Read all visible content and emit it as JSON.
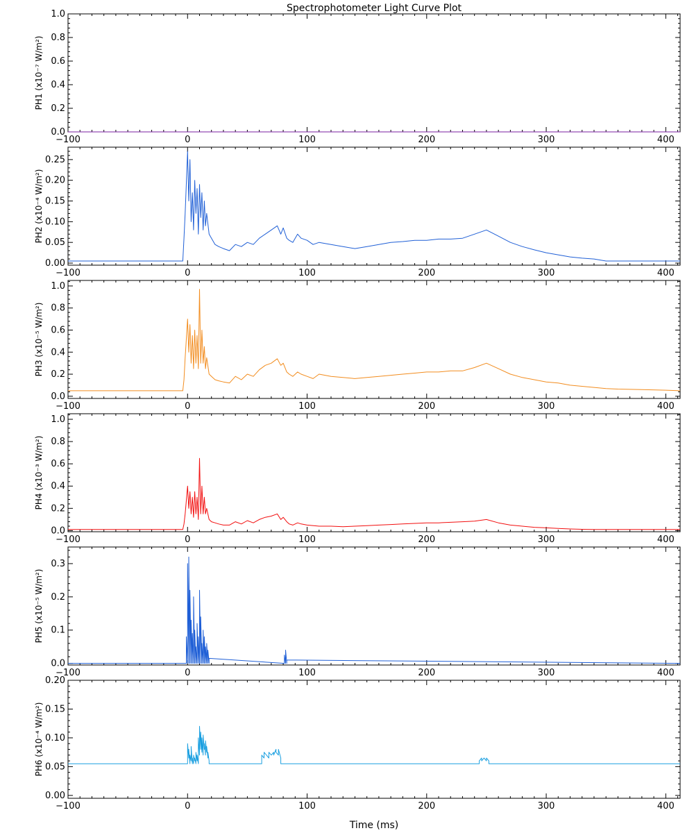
{
  "chart_data": {
    "type": "line",
    "title": "Spectrophotometer Light Curve Plot",
    "xlabel": "Time (ms)",
    "xlim": [
      -100,
      412
    ],
    "xticks": [
      -100,
      0,
      100,
      200,
      300,
      400
    ],
    "xtick_labels": [
      "−100",
      "0",
      "100",
      "200",
      "300",
      "400"
    ],
    "panels": [
      {
        "name": "PH1",
        "unit": "(x10⁻⁷ W/m²)",
        "color": "#7a1fa2",
        "ylim": [
          0,
          1.0
        ],
        "yticks": [
          0.0,
          0.2,
          0.4,
          0.6,
          0.8,
          1.0
        ],
        "ytick_labels": [
          "0.0",
          "0.2",
          "0.4",
          "0.6",
          "0.8",
          "1.0"
        ],
        "x": [
          -100,
          412
        ],
        "y": [
          0,
          0
        ]
      },
      {
        "name": "PH2",
        "unit": "(x10⁻⁴ W/m²)",
        "color": "#1f5fd6",
        "ylim": [
          -0.005,
          0.28
        ],
        "yticks": [
          0.0,
          0.05,
          0.1,
          0.15,
          0.2,
          0.25
        ],
        "ytick_labels": [
          "0.00",
          "0.05",
          "0.10",
          "0.15",
          "0.20",
          "0.25"
        ],
        "x": [
          -100,
          -4,
          -3,
          -2,
          0,
          1,
          2,
          3,
          4,
          5,
          6,
          7,
          8,
          9,
          10,
          11,
          12,
          13,
          14,
          15,
          16,
          18,
          20,
          23,
          26,
          30,
          35,
          40,
          45,
          50,
          55,
          60,
          65,
          70,
          75,
          78,
          80,
          83,
          85,
          88,
          92,
          95,
          100,
          105,
          110,
          120,
          130,
          140,
          150,
          160,
          170,
          180,
          190,
          200,
          210,
          220,
          230,
          240,
          250,
          260,
          270,
          280,
          290,
          300,
          310,
          320,
          330,
          340,
          350,
          412
        ],
        "y": [
          0.005,
          0.005,
          0.06,
          0.12,
          0.27,
          0.15,
          0.25,
          0.1,
          0.17,
          0.08,
          0.2,
          0.12,
          0.18,
          0.07,
          0.19,
          0.11,
          0.17,
          0.08,
          0.15,
          0.09,
          0.12,
          0.07,
          0.06,
          0.045,
          0.04,
          0.035,
          0.03,
          0.045,
          0.04,
          0.05,
          0.045,
          0.06,
          0.07,
          0.08,
          0.09,
          0.07,
          0.085,
          0.06,
          0.055,
          0.05,
          0.07,
          0.06,
          0.055,
          0.045,
          0.05,
          0.045,
          0.04,
          0.035,
          0.04,
          0.045,
          0.05,
          0.052,
          0.055,
          0.055,
          0.058,
          0.058,
          0.06,
          0.07,
          0.08,
          0.065,
          0.05,
          0.04,
          0.032,
          0.025,
          0.02,
          0.015,
          0.012,
          0.01,
          0.005,
          0.005
        ]
      },
      {
        "name": "PH3",
        "unit": "(x10⁻⁵ W/m²)",
        "color": "#f28c1e",
        "ylim": [
          -0.02,
          1.05
        ],
        "yticks": [
          0.0,
          0.2,
          0.4,
          0.6,
          0.8,
          1.0
        ],
        "ytick_labels": [
          "0.0",
          "0.2",
          "0.4",
          "0.6",
          "0.8",
          "1.0"
        ],
        "x": [
          -100,
          -4,
          -3,
          -2,
          0,
          1,
          2,
          3,
          4,
          5,
          6,
          7,
          8,
          9,
          10,
          11,
          12,
          13,
          14,
          15,
          16,
          18,
          20,
          23,
          26,
          30,
          35,
          40,
          45,
          50,
          55,
          60,
          65,
          70,
          75,
          78,
          80,
          83,
          85,
          88,
          92,
          95,
          100,
          105,
          110,
          120,
          130,
          140,
          150,
          160,
          170,
          180,
          190,
          200,
          210,
          220,
          230,
          240,
          250,
          260,
          270,
          280,
          290,
          300,
          310,
          320,
          330,
          340,
          350,
          360,
          380,
          400,
          412
        ],
        "y": [
          0.05,
          0.05,
          0.15,
          0.35,
          0.7,
          0.4,
          0.65,
          0.3,
          0.55,
          0.25,
          0.6,
          0.3,
          0.55,
          0.25,
          0.97,
          0.3,
          0.6,
          0.3,
          0.45,
          0.25,
          0.35,
          0.2,
          0.18,
          0.15,
          0.14,
          0.13,
          0.12,
          0.18,
          0.15,
          0.2,
          0.18,
          0.24,
          0.28,
          0.3,
          0.34,
          0.28,
          0.3,
          0.22,
          0.2,
          0.18,
          0.22,
          0.2,
          0.18,
          0.16,
          0.2,
          0.18,
          0.17,
          0.16,
          0.17,
          0.18,
          0.19,
          0.2,
          0.21,
          0.22,
          0.22,
          0.23,
          0.23,
          0.26,
          0.3,
          0.25,
          0.2,
          0.17,
          0.15,
          0.13,
          0.12,
          0.1,
          0.09,
          0.08,
          0.07,
          0.065,
          0.06,
          0.055,
          0.05
        ]
      },
      {
        "name": "PH4",
        "unit": "(x10⁻³ W/m²)",
        "color": "#f20d0d",
        "ylim": [
          -0.01,
          1.05
        ],
        "yticks": [
          0.0,
          0.2,
          0.4,
          0.6,
          0.8,
          1.0
        ],
        "ytick_labels": [
          "0.0",
          "0.2",
          "0.4",
          "0.6",
          "0.8",
          "1.0"
        ],
        "x": [
          -100,
          -4,
          -3,
          -2,
          0,
          1,
          2,
          3,
          4,
          5,
          6,
          7,
          8,
          9,
          10,
          11,
          12,
          13,
          14,
          15,
          16,
          18,
          20,
          23,
          26,
          30,
          35,
          40,
          45,
          50,
          55,
          60,
          65,
          70,
          75,
          78,
          80,
          83,
          85,
          88,
          92,
          95,
          100,
          110,
          120,
          130,
          140,
          150,
          160,
          170,
          180,
          190,
          200,
          210,
          220,
          230,
          240,
          250,
          260,
          270,
          280,
          290,
          300,
          310,
          320,
          330,
          340,
          350,
          412
        ],
        "y": [
          0.01,
          0.01,
          0.06,
          0.15,
          0.4,
          0.2,
          0.35,
          0.15,
          0.3,
          0.12,
          0.35,
          0.15,
          0.3,
          0.1,
          0.65,
          0.15,
          0.4,
          0.15,
          0.3,
          0.15,
          0.2,
          0.1,
          0.08,
          0.07,
          0.06,
          0.05,
          0.05,
          0.08,
          0.06,
          0.09,
          0.07,
          0.1,
          0.12,
          0.13,
          0.15,
          0.1,
          0.12,
          0.08,
          0.06,
          0.05,
          0.07,
          0.06,
          0.05,
          0.04,
          0.04,
          0.035,
          0.04,
          0.045,
          0.05,
          0.055,
          0.06,
          0.065,
          0.07,
          0.07,
          0.075,
          0.08,
          0.085,
          0.1,
          0.07,
          0.05,
          0.04,
          0.03,
          0.025,
          0.02,
          0.015,
          0.012,
          0.01,
          0.01,
          0.01
        ]
      },
      {
        "name": "PH5",
        "unit": "(x10⁻⁵ W/m²)",
        "color": "#1f5fd6",
        "ylim": [
          -0.005,
          0.35
        ],
        "yticks": [
          0.0,
          0.1,
          0.2,
          0.3
        ],
        "ytick_labels": [
          "0.0",
          "0.1",
          "0.2",
          "0.3"
        ],
        "x": [
          -100,
          -1,
          -1,
          0,
          0,
          1,
          1,
          2,
          2,
          3,
          3,
          4,
          4,
          5,
          5,
          6,
          6,
          7,
          7,
          8,
          8,
          9,
          9,
          10,
          10,
          11,
          11,
          12,
          12,
          13,
          13,
          14,
          14,
          15,
          15,
          16,
          16,
          17,
          17,
          18,
          18,
          81,
          81,
          82,
          82,
          83,
          83,
          412
        ],
        "y": [
          0,
          0,
          0.08,
          0,
          0.3,
          0,
          0.32,
          0,
          0.22,
          0,
          0.13,
          0,
          0.09,
          0,
          0.2,
          0,
          0.1,
          0,
          0.05,
          0,
          0.12,
          0,
          0.08,
          0,
          0.22,
          0,
          0.14,
          0,
          0.06,
          0,
          0.1,
          0,
          0.08,
          0,
          0.05,
          0,
          0.06,
          0,
          0.04,
          0,
          0.015,
          0,
          0.025,
          0,
          0.04,
          0,
          0.01,
          0
        ]
      },
      {
        "name": "PH6",
        "unit": "(x10⁻⁴ W/m²)",
        "color": "#1a9fe0",
        "ylim": [
          -0.005,
          0.2
        ],
        "yticks": [
          0.0,
          0.05,
          0.1,
          0.15,
          0.2
        ],
        "ytick_labels": [
          "0.00",
          "0.05",
          "0.10",
          "0.15",
          "0.20"
        ],
        "x": [
          -100,
          0,
          0,
          1,
          1,
          2,
          2,
          3,
          3,
          4,
          4,
          5,
          5,
          6,
          6,
          7,
          7,
          8,
          8,
          9,
          9,
          10,
          10,
          11,
          11,
          12,
          12,
          13,
          13,
          14,
          14,
          15,
          15,
          16,
          16,
          17,
          17,
          18,
          18,
          62,
          62,
          64,
          64,
          66,
          66,
          68,
          68,
          70,
          70,
          72,
          72,
          74,
          74,
          76,
          76,
          78,
          78,
          244,
          244,
          246,
          246,
          248,
          248,
          250,
          250,
          252,
          252,
          412
        ],
        "y": [
          0.055,
          0.055,
          0.09,
          0.065,
          0.08,
          0.055,
          0.07,
          0.06,
          0.085,
          0.055,
          0.065,
          0.055,
          0.07,
          0.06,
          0.065,
          0.055,
          0.075,
          0.06,
          0.07,
          0.055,
          0.1,
          0.07,
          0.12,
          0.08,
          0.11,
          0.075,
          0.1,
          0.07,
          0.105,
          0.08,
          0.09,
          0.07,
          0.095,
          0.075,
          0.085,
          0.065,
          0.075,
          0.06,
          0.055,
          0.055,
          0.07,
          0.065,
          0.075,
          0.07,
          0.07,
          0.065,
          0.075,
          0.07,
          0.07,
          0.075,
          0.07,
          0.08,
          0.075,
          0.07,
          0.08,
          0.065,
          0.055,
          0.055,
          0.06,
          0.065,
          0.06,
          0.065,
          0.065,
          0.06,
          0.065,
          0.06,
          0.055,
          0.055
        ]
      }
    ]
  }
}
